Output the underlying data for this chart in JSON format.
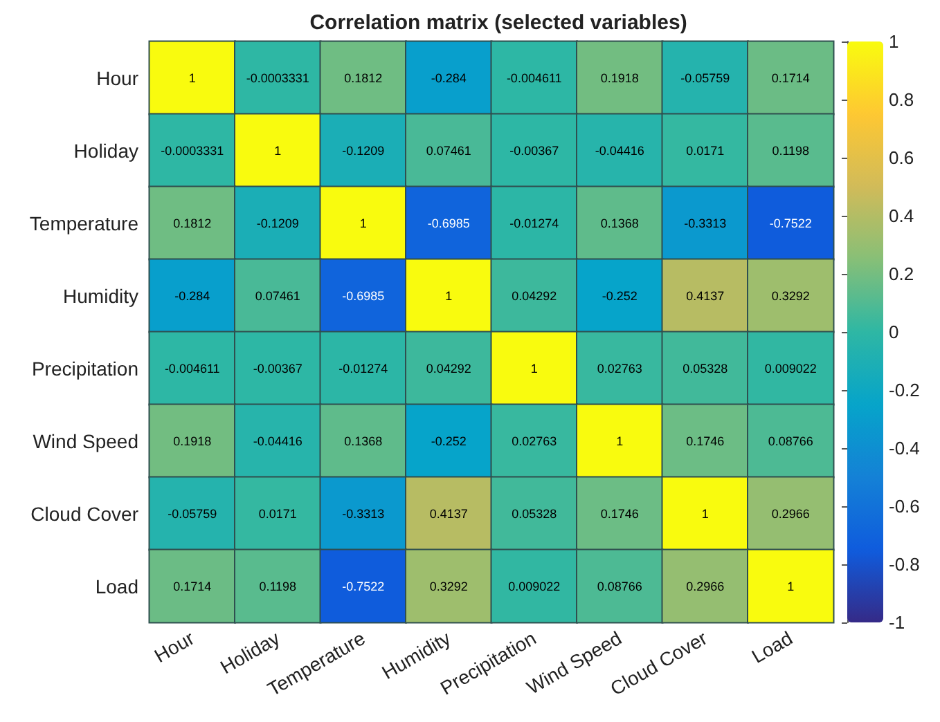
{
  "chart_data": {
    "type": "heatmap",
    "title": "Correlation matrix (selected variables)",
    "categories": [
      "Hour",
      "Holiday",
      "Temperature",
      "Humidity",
      "Precipitation",
      "Wind Speed",
      "Cloud Cover",
      "Load"
    ],
    "y_categories": [
      "Hour",
      "Holiday",
      "Temperature",
      "Humidity",
      "Precipitation",
      "Wind Speed",
      "Cloud Cover",
      "Load"
    ],
    "cells": [
      [
        1,
        -0.0003331,
        0.1812,
        -0.284,
        -0.004611,
        0.1918,
        -0.05759,
        0.1714
      ],
      [
        -0.0003331,
        1,
        -0.1209,
        0.07461,
        -0.00367,
        -0.04416,
        0.0171,
        0.1198
      ],
      [
        0.1812,
        -0.1209,
        1,
        -0.6985,
        -0.01274,
        0.1368,
        -0.3313,
        -0.7522
      ],
      [
        -0.284,
        0.07461,
        -0.6985,
        1,
        0.04292,
        -0.252,
        0.4137,
        0.3292
      ],
      [
        -0.004611,
        -0.00367,
        -0.01274,
        0.04292,
        1,
        0.02763,
        0.05328,
        0.009022
      ],
      [
        0.1918,
        -0.04416,
        0.1368,
        -0.252,
        0.02763,
        1,
        0.1746,
        0.08766
      ],
      [
        -0.05759,
        0.0171,
        -0.3313,
        0.4137,
        0.05328,
        0.1746,
        1,
        0.2966
      ],
      [
        0.1714,
        0.1198,
        -0.7522,
        0.3292,
        0.009022,
        0.08766,
        0.2966,
        1
      ]
    ],
    "clim": [
      -1,
      1
    ],
    "cticks": [
      -1,
      -0.8,
      -0.6,
      -0.4,
      -0.2,
      0,
      0.2,
      0.4,
      0.6,
      0.8,
      1
    ],
    "data_labels": true
  }
}
